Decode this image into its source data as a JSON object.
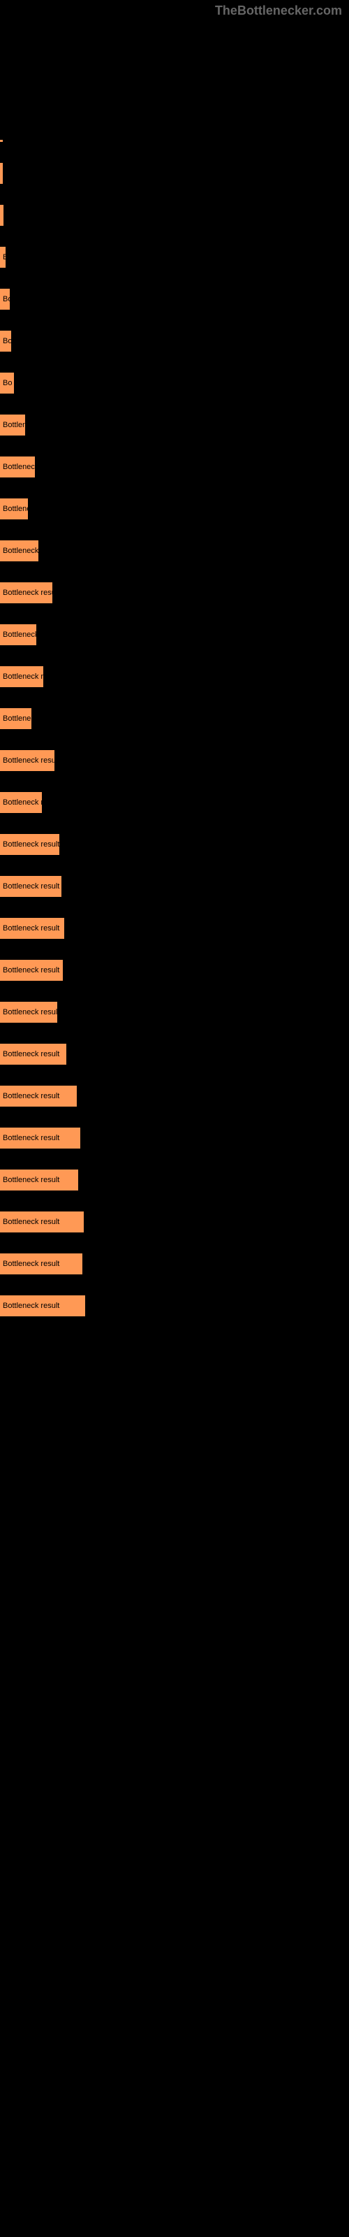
{
  "watermark": "TheBottlenecker.com",
  "chart": {
    "type": "bar",
    "background_color": "#000000",
    "bar_color": "#ff9955",
    "text_color": "#000000",
    "bars": [
      {
        "width": 2,
        "height": 3,
        "label": ""
      },
      {
        "width": 3,
        "height": 30,
        "label": ""
      },
      {
        "width": 5,
        "height": 30,
        "label": ""
      },
      {
        "width": 8,
        "height": 30,
        "label": "B"
      },
      {
        "width": 14,
        "height": 30,
        "label": "Bo"
      },
      {
        "width": 16,
        "height": 30,
        "label": "Bo"
      },
      {
        "width": 20,
        "height": 30,
        "label": "Bo"
      },
      {
        "width": 36,
        "height": 30,
        "label": "Bottlene"
      },
      {
        "width": 50,
        "height": 30,
        "label": "Bottleneck r"
      },
      {
        "width": 40,
        "height": 30,
        "label": "Bottlenec"
      },
      {
        "width": 55,
        "height": 30,
        "label": "Bottleneck res"
      },
      {
        "width": 75,
        "height": 30,
        "label": "Bottleneck result"
      },
      {
        "width": 52,
        "height": 30,
        "label": "Bottleneck re"
      },
      {
        "width": 62,
        "height": 30,
        "label": "Bottleneck resu"
      },
      {
        "width": 45,
        "height": 30,
        "label": "Bottleneck r"
      },
      {
        "width": 78,
        "height": 30,
        "label": "Bottleneck result"
      },
      {
        "width": 60,
        "height": 30,
        "label": "Bottleneck res"
      },
      {
        "width": 85,
        "height": 30,
        "label": "Bottleneck result"
      },
      {
        "width": 88,
        "height": 30,
        "label": "Bottleneck result"
      },
      {
        "width": 92,
        "height": 30,
        "label": "Bottleneck result"
      },
      {
        "width": 90,
        "height": 30,
        "label": "Bottleneck result"
      },
      {
        "width": 82,
        "height": 30,
        "label": "Bottleneck result"
      },
      {
        "width": 95,
        "height": 30,
        "label": "Bottleneck result"
      },
      {
        "width": 110,
        "height": 30,
        "label": "Bottleneck result"
      },
      {
        "width": 115,
        "height": 30,
        "label": "Bottleneck result"
      },
      {
        "width": 112,
        "height": 30,
        "label": "Bottleneck result"
      },
      {
        "width": 120,
        "height": 30,
        "label": "Bottleneck result"
      },
      {
        "width": 118,
        "height": 30,
        "label": "Bottleneck result"
      },
      {
        "width": 122,
        "height": 30,
        "label": "Bottleneck result"
      }
    ]
  }
}
